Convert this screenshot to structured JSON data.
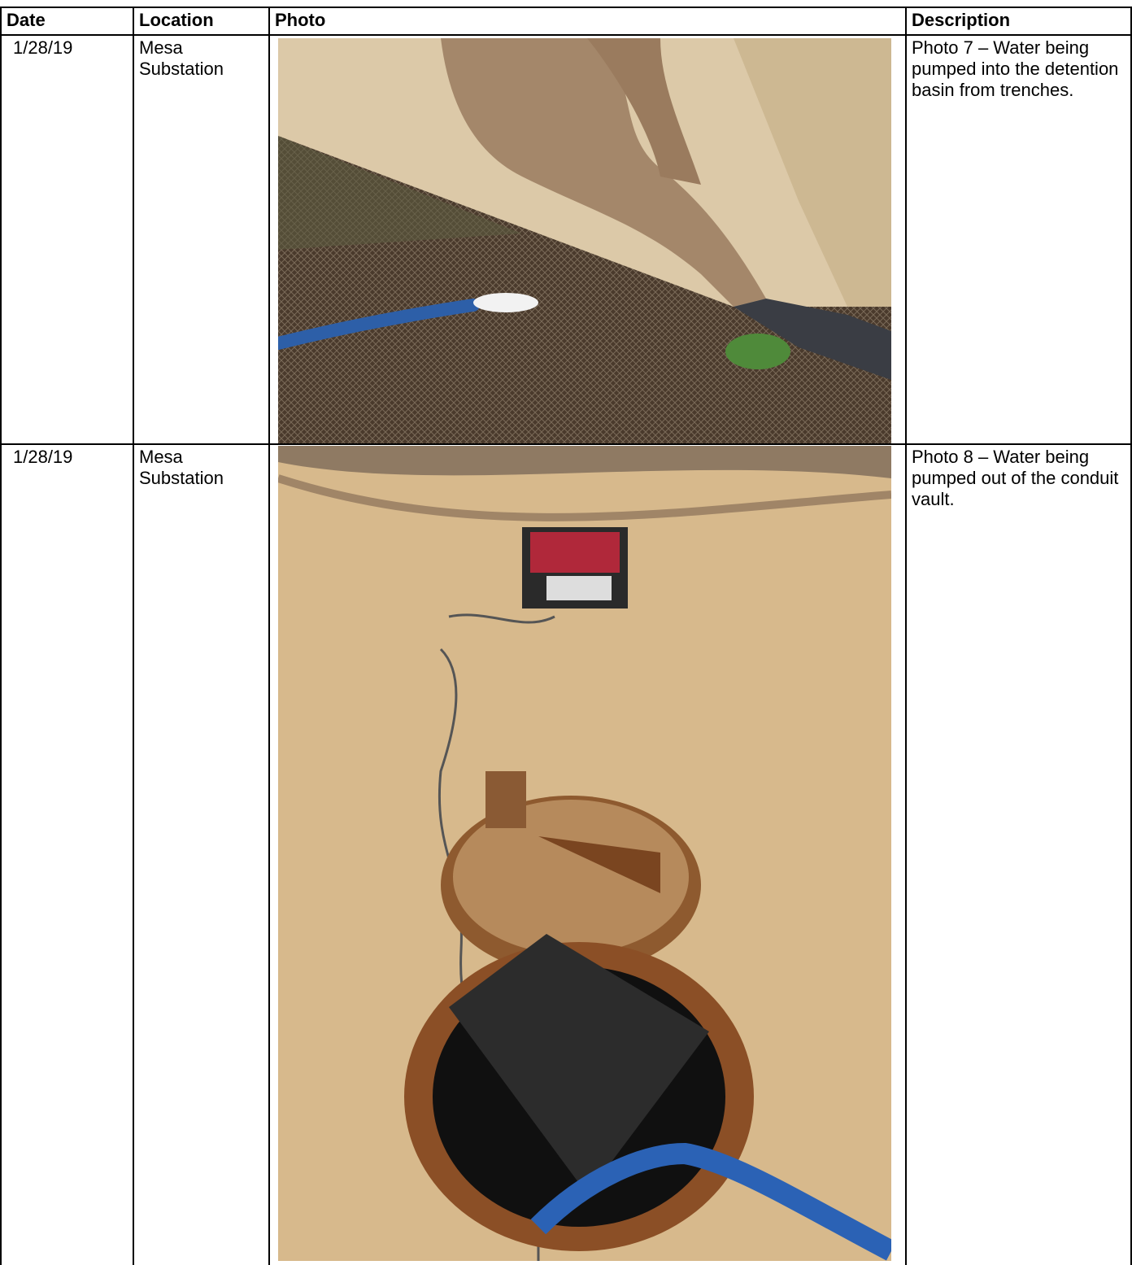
{
  "table": {
    "header": [
      "Date",
      "Location",
      "Photo",
      "Description"
    ],
    "rows": [
      {
        "date": "1/28/19",
        "location": "Mesa Substation",
        "description": "Photo 7 – Water being pumped into the detention basin from trenches."
      },
      {
        "date": "1/28/19",
        "location": "Mesa Substation",
        "description": "Photo 8 – Water being pumped out of the conduit vault."
      }
    ]
  }
}
